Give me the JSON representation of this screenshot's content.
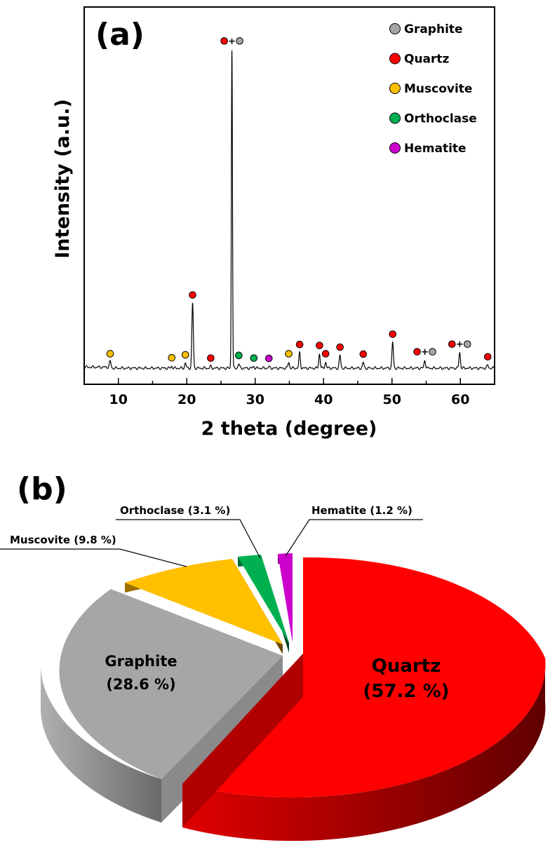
{
  "panel_a_label": "(a)",
  "panel_b_label": "(b)",
  "colors": {
    "Graphite": "#a6a6a6",
    "Quartz": "#ff0000",
    "Muscovite": "#ffc000",
    "Orthoclase": "#00b050",
    "Hematite": "#cc00cc"
  },
  "chart_data": [
    {
      "type": "line",
      "title": "(a)",
      "xlabel": "2 theta (degree)",
      "ylabel": "Intensity (a.u.)",
      "xlim": [
        5,
        65
      ],
      "ylim": [
        0,
        100
      ],
      "xticks": [
        10,
        20,
        30,
        40,
        50,
        60
      ],
      "xtick_labels": [
        "10",
        "20",
        "30",
        "40",
        "50",
        "60"
      ],
      "legend": {
        "position": "top-right",
        "entries": [
          "Graphite",
          "Quartz",
          "Muscovite",
          "Orthoclase",
          "Hematite"
        ]
      },
      "baseline": 3.5,
      "peaks": [
        {
          "x": 8.8,
          "height": 1.8,
          "phases": [
            "Muscovite"
          ]
        },
        {
          "x": 17.8,
          "height": 0.6,
          "phases": [
            "Muscovite"
          ]
        },
        {
          "x": 19.8,
          "height": 1.5,
          "phases": [
            "Muscovite"
          ]
        },
        {
          "x": 20.85,
          "height": 19.5,
          "phases": [
            "Quartz"
          ]
        },
        {
          "x": 23.5,
          "height": 0.5,
          "phases": [
            "Quartz"
          ]
        },
        {
          "x": 26.6,
          "height": 96,
          "phases": [
            "Quartz",
            "Graphite"
          ]
        },
        {
          "x": 27.6,
          "height": 1.3,
          "phases": [
            "Orthoclase"
          ]
        },
        {
          "x": 29.8,
          "height": 0.5,
          "phases": [
            "Orthoclase"
          ]
        },
        {
          "x": 32.0,
          "height": 0.4,
          "phases": [
            "Hematite"
          ]
        },
        {
          "x": 34.9,
          "height": 1.8,
          "phases": [
            "Muscovite"
          ]
        },
        {
          "x": 36.5,
          "height": 4.6,
          "phases": [
            "Quartz"
          ]
        },
        {
          "x": 39.4,
          "height": 4.3,
          "phases": [
            "Quartz"
          ]
        },
        {
          "x": 40.3,
          "height": 1.8,
          "phases": [
            "Quartz"
          ]
        },
        {
          "x": 42.4,
          "height": 3.8,
          "phases": [
            "Quartz"
          ]
        },
        {
          "x": 45.8,
          "height": 1.7,
          "phases": [
            "Quartz"
          ]
        },
        {
          "x": 50.1,
          "height": 7.7,
          "phases": [
            "Quartz"
          ]
        },
        {
          "x": 54.8,
          "height": 2.4,
          "phases": [
            "Quartz",
            "Graphite"
          ]
        },
        {
          "x": 59.9,
          "height": 4.7,
          "phases": [
            "Quartz",
            "Graphite"
          ]
        },
        {
          "x": 64.0,
          "height": 0.9,
          "phases": [
            "Quartz"
          ]
        }
      ]
    },
    {
      "type": "pie",
      "title": "(b)",
      "slices": [
        {
          "name": "Quartz",
          "value": 57.2,
          "label_line1": "Quartz",
          "label_line2": "(57.2 %)"
        },
        {
          "name": "Graphite",
          "value": 28.6,
          "label_line1": "Graphite",
          "label_line2": "(28.6 %)"
        },
        {
          "name": "Muscovite",
          "value": 9.8,
          "callout": "Muscovite (9.8 %)"
        },
        {
          "name": "Orthoclase",
          "value": 3.1,
          "callout": "Orthoclase (3.1 %)"
        },
        {
          "name": "Hematite",
          "value": 1.2,
          "callout": "Hematite (1.2 %)"
        }
      ]
    }
  ]
}
